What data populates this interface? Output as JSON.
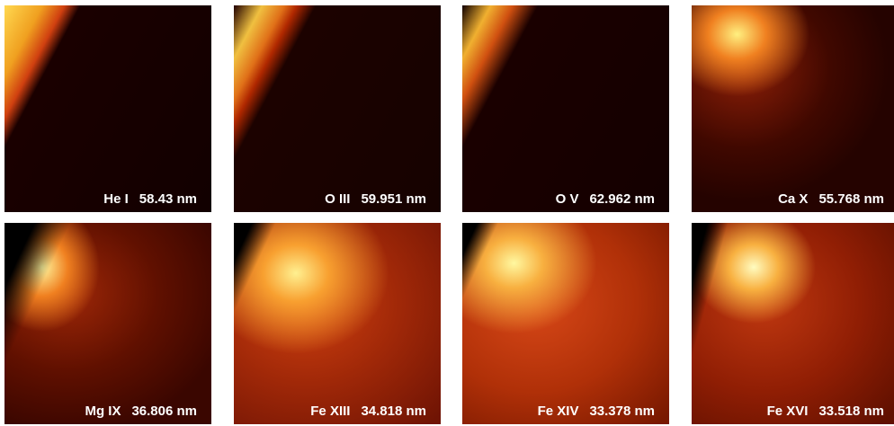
{
  "panels": [
    {
      "ion": "He I",
      "wavelength": "58.43 nm"
    },
    {
      "ion": "O III",
      "wavelength": "59.951 nm"
    },
    {
      "ion": "O V",
      "wavelength": "62.962 nm"
    },
    {
      "ion": "Ca X",
      "wavelength": "55.768 nm"
    },
    {
      "ion": "Mg IX",
      "wavelength": "36.806 nm"
    },
    {
      "ion": "Fe XIII",
      "wavelength": "34.818 nm"
    },
    {
      "ion": "Fe XIV",
      "wavelength": "33.378 nm"
    },
    {
      "ion": "Fe XVI",
      "wavelength": "33.518 nm"
    }
  ]
}
